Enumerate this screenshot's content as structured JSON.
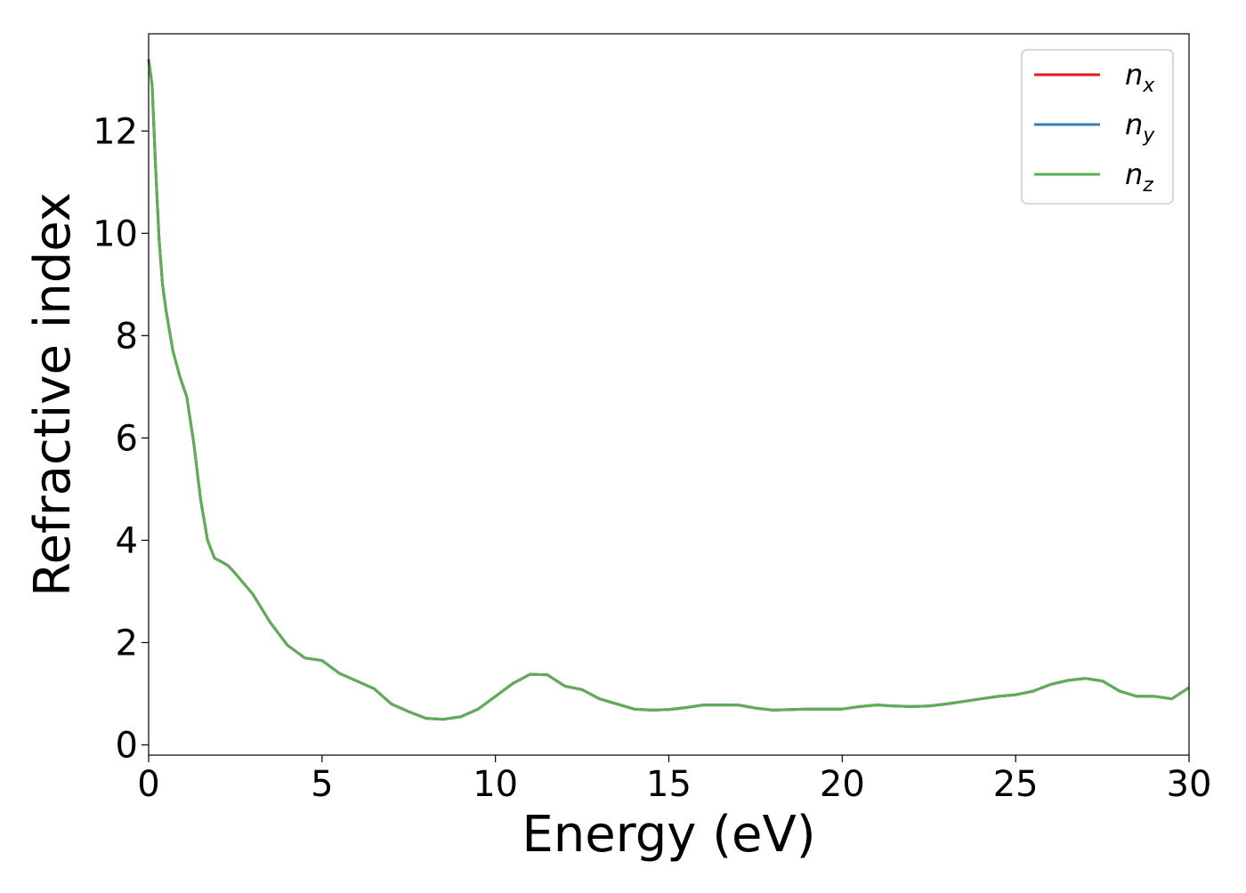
{
  "chart_data": {
    "type": "line",
    "title": "",
    "xlabel": "Energy (eV)",
    "ylabel": "Refractive index",
    "xlim": [
      0,
      30
    ],
    "ylim": [
      -0.2,
      13.9
    ],
    "xticks": [
      0,
      5,
      10,
      15,
      20,
      25,
      30
    ],
    "yticks": [
      0,
      2,
      4,
      6,
      8,
      10,
      12
    ],
    "grid": false,
    "legend_position": "top-right",
    "x": [
      0,
      0.1,
      0.2,
      0.3,
      0.4,
      0.5,
      0.7,
      0.9,
      1.1,
      1.3,
      1.5,
      1.7,
      1.9,
      2.1,
      2.3,
      2.5,
      3.0,
      3.5,
      4.0,
      4.5,
      5.0,
      5.5,
      6.0,
      6.5,
      7.0,
      7.5,
      8.0,
      8.5,
      9.0,
      9.5,
      10.0,
      10.5,
      11.0,
      11.5,
      12.0,
      12.5,
      13.0,
      13.5,
      14.0,
      14.5,
      15.0,
      15.5,
      16.0,
      16.5,
      17.0,
      17.5,
      18.0,
      18.5,
      19.0,
      19.5,
      20.0,
      20.5,
      21.0,
      21.5,
      22.0,
      22.5,
      23.0,
      23.5,
      24.0,
      24.5,
      25.0,
      25.5,
      26.0,
      26.5,
      27.0,
      27.5,
      28.0,
      28.5,
      29.0,
      29.5,
      30.0
    ],
    "series": [
      {
        "name": "n_x",
        "label_base": "n",
        "label_sub": "x",
        "color": "#e41a1c",
        "values": [
          13.4,
          12.9,
          11.3,
          9.9,
          9.0,
          8.5,
          7.7,
          7.2,
          6.8,
          5.9,
          4.8,
          4.0,
          3.65,
          3.58,
          3.5,
          3.35,
          2.95,
          2.4,
          1.95,
          1.7,
          1.65,
          1.4,
          1.25,
          1.1,
          0.8,
          0.65,
          0.52,
          0.5,
          0.55,
          0.7,
          0.95,
          1.2,
          1.38,
          1.37,
          1.15,
          1.08,
          0.9,
          0.8,
          0.7,
          0.68,
          0.69,
          0.73,
          0.78,
          0.78,
          0.78,
          0.72,
          0.68,
          0.69,
          0.7,
          0.7,
          0.7,
          0.75,
          0.78,
          0.76,
          0.75,
          0.76,
          0.8,
          0.85,
          0.9,
          0.95,
          0.98,
          1.05,
          1.18,
          1.26,
          1.3,
          1.25,
          1.05,
          0.95,
          0.95,
          0.9,
          1.12
        ]
      },
      {
        "name": "n_y",
        "label_base": "n",
        "label_sub": "y",
        "color": "#377eb8",
        "values": [
          13.4,
          12.9,
          11.3,
          9.9,
          9.0,
          8.5,
          7.7,
          7.2,
          6.8,
          5.9,
          4.8,
          4.0,
          3.65,
          3.58,
          3.5,
          3.35,
          2.95,
          2.4,
          1.95,
          1.7,
          1.65,
          1.4,
          1.25,
          1.1,
          0.8,
          0.65,
          0.52,
          0.5,
          0.55,
          0.7,
          0.95,
          1.2,
          1.38,
          1.37,
          1.15,
          1.08,
          0.9,
          0.8,
          0.7,
          0.68,
          0.69,
          0.73,
          0.78,
          0.78,
          0.78,
          0.72,
          0.68,
          0.69,
          0.7,
          0.7,
          0.7,
          0.75,
          0.78,
          0.76,
          0.75,
          0.76,
          0.8,
          0.85,
          0.9,
          0.95,
          0.98,
          1.05,
          1.18,
          1.26,
          1.3,
          1.25,
          1.05,
          0.95,
          0.95,
          0.9,
          1.12
        ]
      },
      {
        "name": "n_z",
        "label_base": "n",
        "label_sub": "z",
        "color": "#5eae54",
        "values": [
          13.4,
          12.9,
          11.3,
          9.9,
          9.0,
          8.5,
          7.7,
          7.2,
          6.8,
          5.9,
          4.8,
          4.0,
          3.65,
          3.58,
          3.5,
          3.35,
          2.95,
          2.4,
          1.95,
          1.7,
          1.65,
          1.4,
          1.25,
          1.1,
          0.8,
          0.65,
          0.52,
          0.5,
          0.55,
          0.7,
          0.95,
          1.2,
          1.38,
          1.37,
          1.15,
          1.08,
          0.9,
          0.8,
          0.7,
          0.68,
          0.69,
          0.73,
          0.78,
          0.78,
          0.78,
          0.72,
          0.68,
          0.69,
          0.7,
          0.7,
          0.7,
          0.75,
          0.78,
          0.76,
          0.75,
          0.76,
          0.8,
          0.85,
          0.9,
          0.95,
          0.98,
          1.05,
          1.18,
          1.26,
          1.3,
          1.25,
          1.05,
          0.95,
          0.95,
          0.9,
          1.12
        ]
      }
    ]
  }
}
